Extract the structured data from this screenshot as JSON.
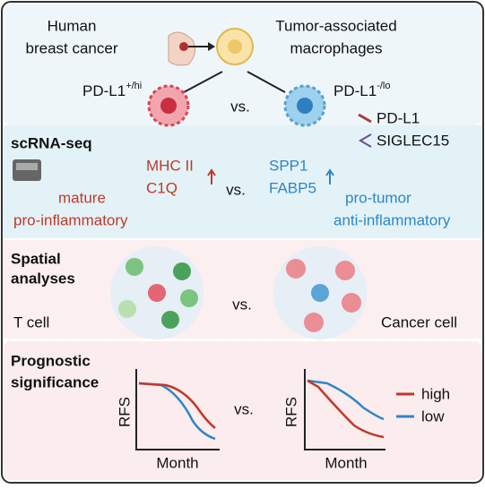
{
  "header": {
    "source": [
      "Human",
      "breast cancer"
    ],
    "target": [
      "Tumor-associated",
      "macrophages"
    ],
    "left_label": "PD-L1",
    "left_sup": "+/hi",
    "vs": "vs.",
    "right_label": "PD-L1",
    "right_sup": "-/lo",
    "legend": [
      "PD-L1",
      "SIGLEC15"
    ]
  },
  "scrna": {
    "title": "scRNA-seq",
    "left_genes": [
      "MHC II",
      "C1Q"
    ],
    "vs": "vs.",
    "right_genes": [
      "SPP1",
      "FABP5"
    ],
    "left_desc": [
      "mature",
      "pro-inflammatory"
    ],
    "right_desc": [
      "pro-tumor",
      "anti-inflammatory"
    ]
  },
  "spatial": {
    "title": [
      "Spatial",
      "analyses"
    ],
    "left_label": "T cell",
    "vs": "vs.",
    "right_label": "Cancer cell"
  },
  "prognostic": {
    "title": [
      "Prognostic",
      "significance"
    ],
    "y_label": "RFS",
    "x_label": "Month",
    "vs": "vs.",
    "legend": [
      "high",
      "low"
    ]
  }
}
